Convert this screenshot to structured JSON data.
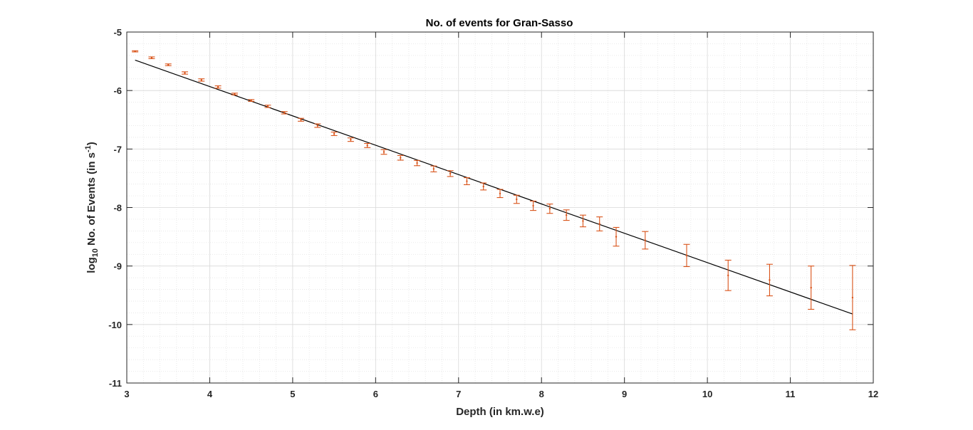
{
  "chart_data": {
    "type": "scatter",
    "title": "No. of events for Gran-Sasso",
    "xlabel": "Depth (in km.w.e)",
    "ylabel": {
      "prefix": "log",
      "sub": "10",
      "middle": " No. of Events (in s",
      "sup": "-1",
      "suffix": ")"
    },
    "xlim": [
      3,
      12
    ],
    "ylim": [
      -11,
      -5
    ],
    "xticks": [
      "3",
      "4",
      "5",
      "6",
      "7",
      "8",
      "9",
      "10",
      "11",
      "12"
    ],
    "yticks": [
      "-5",
      "-6",
      "-7",
      "-8",
      "-9",
      "-10",
      "-11"
    ],
    "xtick_values": [
      3,
      4,
      5,
      6,
      7,
      8,
      9,
      10,
      11,
      12
    ],
    "ytick_values": [
      -5,
      -6,
      -7,
      -8,
      -9,
      -10,
      -11
    ],
    "grid": true,
    "minor_grid": true,
    "series": [
      {
        "type": "errorbar",
        "color": "#d95319",
        "x": [
          3.1,
          3.3,
          3.5,
          3.7,
          3.9,
          4.1,
          4.3,
          4.5,
          4.7,
          4.9,
          5.1,
          5.3,
          5.5,
          5.7,
          5.9,
          6.1,
          6.3,
          6.5,
          6.7,
          6.9,
          7.1,
          7.3,
          7.5,
          7.7,
          7.9,
          8.1,
          8.3,
          8.5,
          8.7,
          8.9,
          9.25,
          9.75,
          10.25,
          10.75,
          11.25,
          11.75
        ],
        "y": [
          -5.33,
          -5.44,
          -5.56,
          -5.7,
          -5.82,
          -5.94,
          -6.06,
          -6.17,
          -6.27,
          -6.38,
          -6.5,
          -6.6,
          -6.74,
          -6.84,
          -6.94,
          -7.05,
          -7.15,
          -7.24,
          -7.34,
          -7.42,
          -7.55,
          -7.64,
          -7.76,
          -7.86,
          -7.97,
          -8.02,
          -8.13,
          -8.23,
          -8.28,
          -8.5,
          -8.56,
          -8.82,
          -9.16,
          -9.24,
          -9.37,
          -9.54
        ],
        "err": [
          0.01,
          0.015,
          0.015,
          0.02,
          0.02,
          0.02,
          0.015,
          0.015,
          0.02,
          0.02,
          0.025,
          0.03,
          0.03,
          0.03,
          0.035,
          0.04,
          0.04,
          0.045,
          0.05,
          0.05,
          0.06,
          0.06,
          0.07,
          0.07,
          0.08,
          0.08,
          0.09,
          0.1,
          0.12,
          0.16,
          0.15,
          0.19,
          0.26,
          0.27,
          0.37,
          0.55
        ]
      },
      {
        "type": "line",
        "color": "#000000",
        "x": [
          3.1,
          11.75
        ],
        "y": [
          -5.48,
          -9.82
        ]
      }
    ]
  }
}
